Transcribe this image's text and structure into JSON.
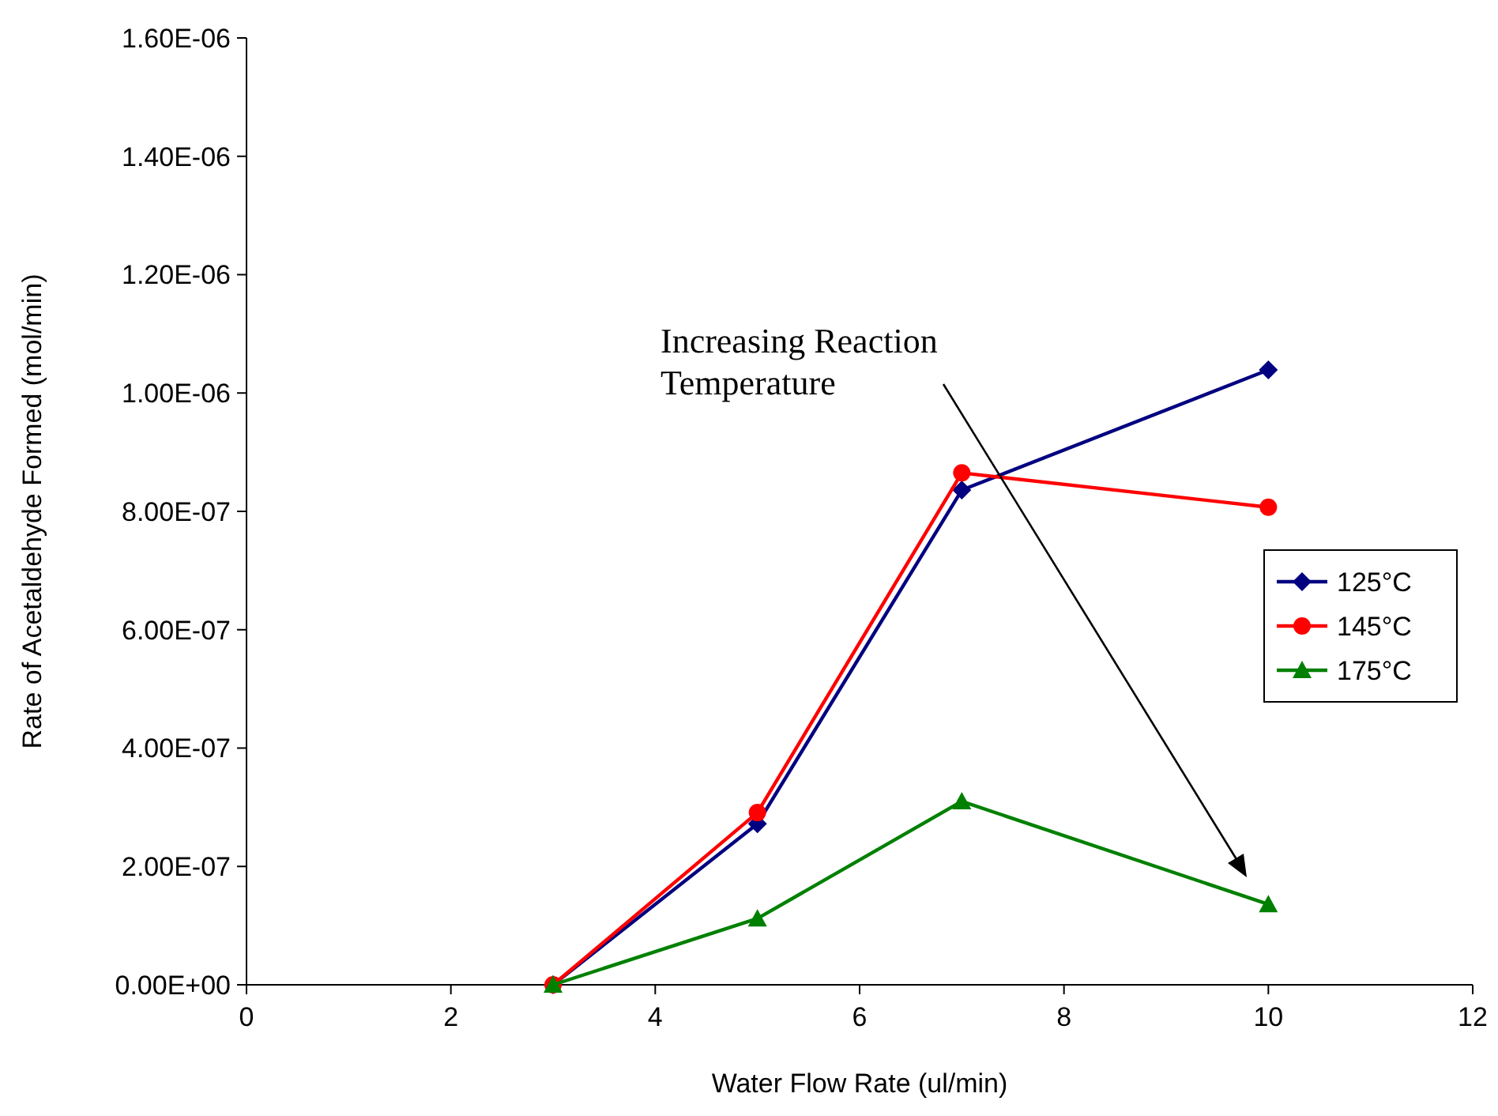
{
  "chart_data": {
    "type": "line",
    "xlabel": "Water Flow Rate (ul/min)",
    "ylabel": "Rate of Acetaldehyde Formed (mol/min)",
    "x": [
      3,
      5,
      7,
      10
    ],
    "series": [
      {
        "name": "125°C",
        "color": "#000080",
        "marker": "diamond",
        "values": [
          0,
          2.72e-07,
          8.36e-07,
          1.039e-06
        ]
      },
      {
        "name": "145°C",
        "color": "#ff0000",
        "marker": "circle",
        "values": [
          0,
          2.91e-07,
          8.65e-07,
          8.07e-07
        ]
      },
      {
        "name": "175°C",
        "color": "#008000",
        "marker": "triangle",
        "values": [
          0,
          1.12e-07,
          3.1e-07,
          1.36e-07
        ]
      }
    ],
    "xlim": [
      0,
      12
    ],
    "xticks": [
      0,
      2,
      4,
      6,
      8,
      10,
      12
    ],
    "ylim": [
      0,
      1.6e-06
    ],
    "yticks": [
      {
        "value": 0,
        "label": "0.00E+00"
      },
      {
        "value": 2e-07,
        "label": "2.00E-07"
      },
      {
        "value": 4e-07,
        "label": "4.00E-07"
      },
      {
        "value": 6e-07,
        "label": "6.00E-07"
      },
      {
        "value": 8e-07,
        "label": "8.00E-07"
      },
      {
        "value": 1e-06,
        "label": "1.00E-06"
      },
      {
        "value": 1.2e-06,
        "label": "1.20E-06"
      },
      {
        "value": 1.4e-06,
        "label": "1.40E-06"
      },
      {
        "value": 1.6e-06,
        "label": "1.60E-06"
      }
    ],
    "grid": false,
    "legend": "right",
    "annotations": [
      "Increasing Reaction Temperature"
    ]
  }
}
